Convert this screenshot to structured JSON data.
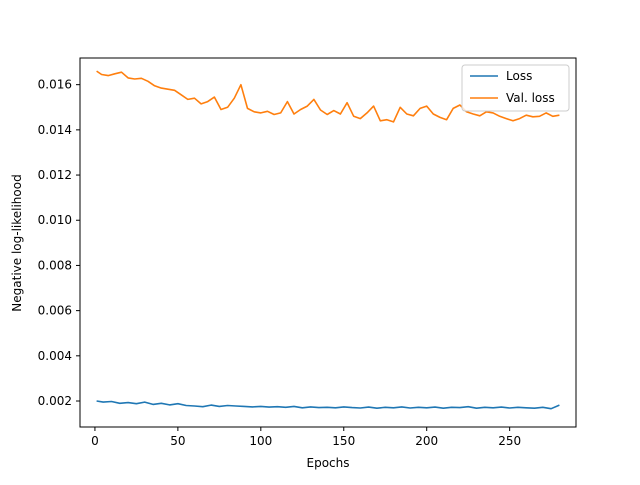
{
  "chart_data": {
    "type": "line",
    "xlabel": "Epochs",
    "ylabel": "Negative log-likelihood",
    "xlim": [
      -9,
      290
    ],
    "ylim": [
      0.00085,
      0.01718
    ],
    "x_ticks": [
      0,
      50,
      100,
      150,
      200,
      250
    ],
    "x_tick_labels": [
      "0",
      "50",
      "100",
      "150",
      "200",
      "250"
    ],
    "y_ticks": [
      0.002,
      0.004,
      0.006,
      0.008,
      0.01,
      0.012,
      0.014,
      0.016
    ],
    "y_tick_labels": [
      "0.002",
      "0.004",
      "0.006",
      "0.008",
      "0.010",
      "0.012",
      "0.014",
      "0.016"
    ],
    "grid": false,
    "legend_position": "upper right",
    "series": [
      {
        "name": "Loss",
        "color": "#1f77b4",
        "x": [
          1,
          5,
          10,
          15,
          20,
          25,
          30,
          35,
          40,
          45,
          50,
          55,
          60,
          65,
          70,
          75,
          80,
          85,
          90,
          95,
          100,
          105,
          110,
          115,
          120,
          125,
          130,
          135,
          140,
          145,
          150,
          155,
          160,
          165,
          170,
          175,
          180,
          185,
          190,
          195,
          200,
          205,
          210,
          215,
          220,
          225,
          230,
          235,
          240,
          245,
          250,
          255,
          260,
          265,
          270,
          275,
          280
        ],
        "values": [
          0.002,
          0.00195,
          0.00198,
          0.0019,
          0.00193,
          0.00188,
          0.00195,
          0.00185,
          0.0019,
          0.00183,
          0.00188,
          0.0018,
          0.00178,
          0.00175,
          0.00182,
          0.00176,
          0.0018,
          0.00178,
          0.00176,
          0.00174,
          0.00176,
          0.00173,
          0.00175,
          0.00172,
          0.00176,
          0.0017,
          0.00174,
          0.00171,
          0.00172,
          0.0017,
          0.00174,
          0.00171,
          0.00169,
          0.00173,
          0.00168,
          0.00172,
          0.0017,
          0.00174,
          0.00169,
          0.00172,
          0.0017,
          0.00173,
          0.00168,
          0.00172,
          0.00171,
          0.00175,
          0.00168,
          0.00172,
          0.0017,
          0.00173,
          0.00169,
          0.00172,
          0.0017,
          0.00168,
          0.00172,
          0.00166,
          0.00182
        ]
      },
      {
        "name": "Val. loss",
        "color": "#ff7f0e",
        "x": [
          1,
          4,
          8,
          12,
          16,
          20,
          24,
          28,
          32,
          36,
          40,
          44,
          48,
          52,
          56,
          60,
          64,
          68,
          72,
          76,
          80,
          84,
          88,
          92,
          96,
          100,
          104,
          108,
          112,
          116,
          120,
          124,
          128,
          132,
          136,
          140,
          144,
          148,
          152,
          156,
          160,
          164,
          168,
          172,
          176,
          180,
          184,
          188,
          192,
          196,
          200,
          204,
          208,
          212,
          216,
          220,
          224,
          228,
          232,
          236,
          240,
          244,
          248,
          252,
          256,
          260,
          264,
          268,
          272,
          276,
          280
        ],
        "values": [
          0.0166,
          0.01645,
          0.0164,
          0.01648,
          0.01655,
          0.0163,
          0.01625,
          0.01628,
          0.01615,
          0.01595,
          0.01585,
          0.0158,
          0.01575,
          0.01555,
          0.01535,
          0.0154,
          0.01515,
          0.01525,
          0.01545,
          0.0149,
          0.015,
          0.0154,
          0.016,
          0.01495,
          0.0148,
          0.01475,
          0.01482,
          0.01468,
          0.01475,
          0.01525,
          0.0147,
          0.0149,
          0.01505,
          0.01535,
          0.01488,
          0.01468,
          0.01485,
          0.0147,
          0.0152,
          0.0146,
          0.0145,
          0.01475,
          0.01505,
          0.0144,
          0.01445,
          0.01435,
          0.015,
          0.0147,
          0.01462,
          0.01495,
          0.01505,
          0.0147,
          0.01455,
          0.01445,
          0.01495,
          0.0151,
          0.0148,
          0.0147,
          0.01462,
          0.0148,
          0.01475,
          0.0146,
          0.0145,
          0.0144,
          0.0145,
          0.01465,
          0.01458,
          0.0146,
          0.01475,
          0.0146,
          0.01465
        ]
      }
    ]
  }
}
